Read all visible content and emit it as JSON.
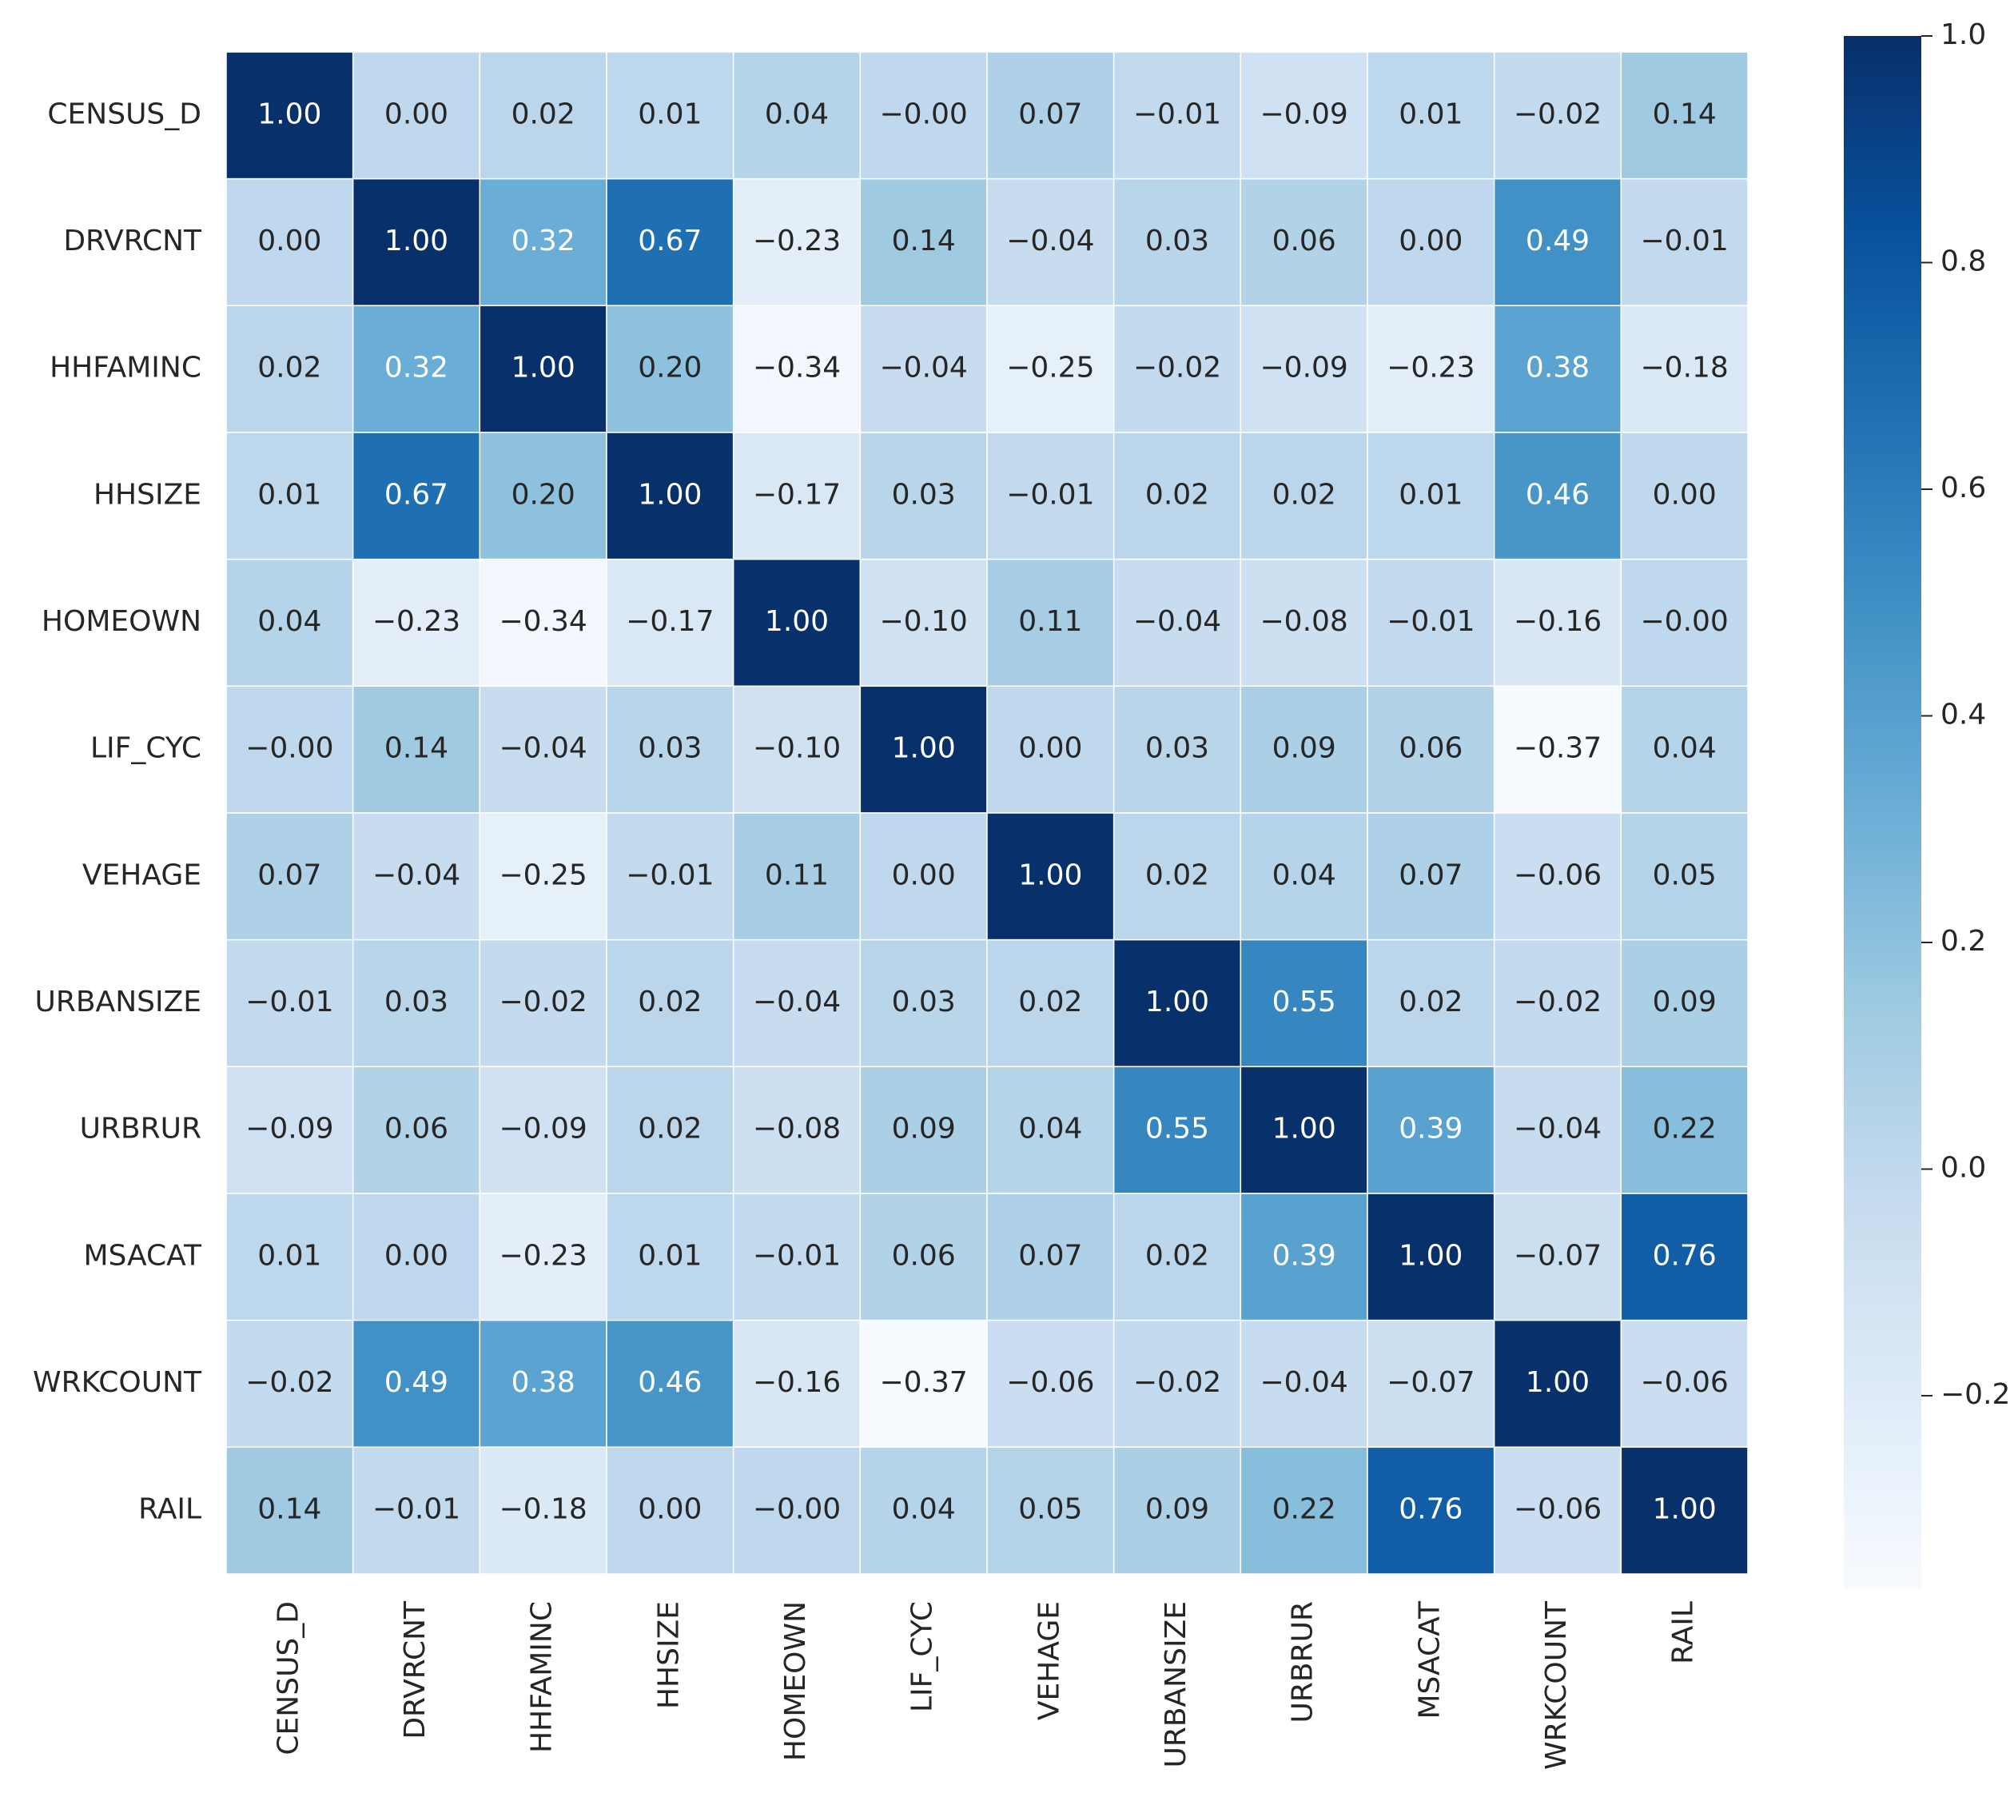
{
  "chart_data": {
    "type": "heatmap",
    "colormap": "Blues",
    "categories": [
      "CENSUS_D",
      "DRVRCNT",
      "HHFAMINC",
      "HHSIZE",
      "HOMEOWN",
      "LIF_CYC",
      "VEHAGE",
      "URBANSIZE",
      "URBRUR",
      "MSACAT",
      "WRKCOUNT",
      "RAIL"
    ],
    "values": [
      [
        1.0,
        0.0,
        0.02,
        0.01,
        0.04,
        0,
        0.07,
        -0.01,
        -0.09,
        0.01,
        -0.02,
        0.14
      ],
      [
        0.0,
        1.0,
        0.32,
        0.67,
        -0.23,
        0.14,
        -0.04,
        0.03,
        0.06,
        0.0,
        0.49,
        -0.01
      ],
      [
        0.02,
        0.32,
        1.0,
        0.2,
        -0.34,
        -0.04,
        -0.25,
        -0.02,
        -0.09,
        -0.23,
        0.38,
        -0.18
      ],
      [
        0.01,
        0.67,
        0.2,
        1.0,
        -0.17,
        0.03,
        -0.01,
        0.02,
        0.02,
        0.01,
        0.46,
        0.0
      ],
      [
        0.04,
        -0.23,
        -0.34,
        -0.17,
        1.0,
        -0.1,
        0.11,
        -0.04,
        -0.08,
        -0.01,
        -0.16,
        0
      ],
      [
        0,
        0.14,
        -0.04,
        0.03,
        -0.1,
        1.0,
        0.0,
        0.03,
        0.09,
        0.06,
        -0.37,
        0.04
      ],
      [
        0.07,
        -0.04,
        -0.25,
        -0.01,
        0.11,
        0.0,
        1.0,
        0.02,
        0.04,
        0.07,
        -0.06,
        0.05
      ],
      [
        -0.01,
        0.03,
        -0.02,
        0.02,
        -0.04,
        0.03,
        0.02,
        1.0,
        0.55,
        0.02,
        -0.02,
        0.09
      ],
      [
        -0.09,
        0.06,
        -0.09,
        0.02,
        -0.08,
        0.09,
        0.04,
        0.55,
        1.0,
        0.39,
        -0.04,
        0.22
      ],
      [
        0.01,
        0.0,
        -0.23,
        0.01,
        -0.01,
        0.06,
        0.07,
        0.02,
        0.39,
        1.0,
        -0.07,
        0.76
      ],
      [
        -0.02,
        0.49,
        0.38,
        0.46,
        -0.16,
        -0.37,
        -0.06,
        -0.02,
        -0.04,
        -0.07,
        1.0,
        -0.06
      ],
      [
        0.14,
        -0.01,
        -0.18,
        0.0,
        0,
        0.04,
        0.05,
        0.09,
        0.22,
        0.76,
        -0.06,
        1.0
      ]
    ],
    "value_labels": [
      [
        "1.00",
        "0.00",
        "0.02",
        "0.01",
        "0.04",
        "−0.00",
        "0.07",
        "−0.01",
        "−0.09",
        "0.01",
        "−0.02",
        "0.14"
      ],
      [
        "0.00",
        "1.00",
        "0.32",
        "0.67",
        "−0.23",
        "0.14",
        "−0.04",
        "0.03",
        "0.06",
        "0.00",
        "0.49",
        "−0.01"
      ],
      [
        "0.02",
        "0.32",
        "1.00",
        "0.20",
        "−0.34",
        "−0.04",
        "−0.25",
        "−0.02",
        "−0.09",
        "−0.23",
        "0.38",
        "−0.18"
      ],
      [
        "0.01",
        "0.67",
        "0.20",
        "1.00",
        "−0.17",
        "0.03",
        "−0.01",
        "0.02",
        "0.02",
        "0.01",
        "0.46",
        "0.00"
      ],
      [
        "0.04",
        "−0.23",
        "−0.34",
        "−0.17",
        "1.00",
        "−0.10",
        "0.11",
        "−0.04",
        "−0.08",
        "−0.01",
        "−0.16",
        "−0.00"
      ],
      [
        "−0.00",
        "0.14",
        "−0.04",
        "0.03",
        "−0.10",
        "1.00",
        "0.00",
        "0.03",
        "0.09",
        "0.06",
        "−0.37",
        "0.04"
      ],
      [
        "0.07",
        "−0.04",
        "−0.25",
        "−0.01",
        "0.11",
        "0.00",
        "1.00",
        "0.02",
        "0.04",
        "0.07",
        "−0.06",
        "0.05"
      ],
      [
        "−0.01",
        "0.03",
        "−0.02",
        "0.02",
        "−0.04",
        "0.03",
        "0.02",
        "1.00",
        "0.55",
        "0.02",
        "−0.02",
        "0.09"
      ],
      [
        "−0.09",
        "0.06",
        "−0.09",
        "0.02",
        "−0.08",
        "0.09",
        "0.04",
        "0.55",
        "1.00",
        "0.39",
        "−0.04",
        "0.22"
      ],
      [
        "0.01",
        "0.00",
        "−0.23",
        "0.01",
        "−0.01",
        "0.06",
        "0.07",
        "0.02",
        "0.39",
        "1.00",
        "−0.07",
        "0.76"
      ],
      [
        "−0.02",
        "0.49",
        "0.38",
        "0.46",
        "−0.16",
        "−0.37",
        "−0.06",
        "−0.02",
        "−0.04",
        "−0.07",
        "1.00",
        "−0.06"
      ],
      [
        "0.14",
        "−0.01",
        "−0.18",
        "0.00",
        "−0.00",
        "0.04",
        "0.05",
        "0.09",
        "0.22",
        "0.76",
        "−0.06",
        "1.00"
      ]
    ],
    "clim": [
      -0.37,
      1.0
    ],
    "cticks": [
      {
        "value": 1.0,
        "label": "1.0"
      },
      0.8,
      0.6,
      0.4,
      0.2,
      {
        "value": 0,
        "label": "0.0"
      },
      {
        "value": -0.2,
        "label": "−0.2"
      }
    ]
  }
}
